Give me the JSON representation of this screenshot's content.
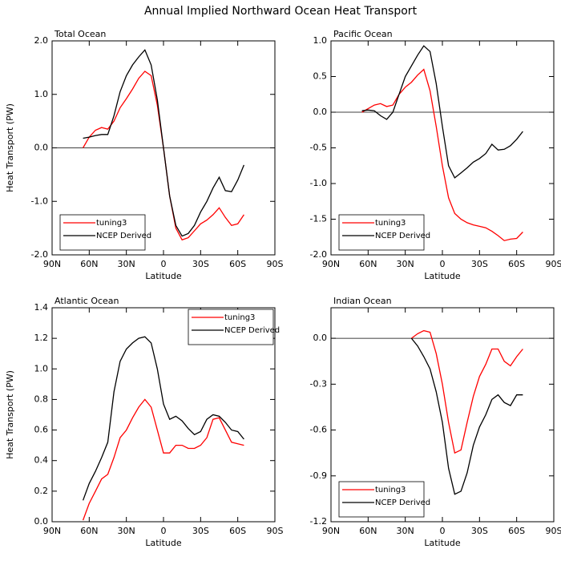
{
  "title": "Annual Implied Northward Ocean Heat Transport",
  "chart_data": [
    {
      "type": "line",
      "title": "Total Ocean",
      "x_label": "Latitude",
      "y_label": "Heat Transport (PW)",
      "x": [
        65,
        60,
        55,
        50,
        45,
        40,
        35,
        30,
        25,
        20,
        15,
        10,
        5,
        0,
        -5,
        -10,
        -15,
        -20,
        -25,
        -30,
        -35,
        -40,
        -45,
        -50,
        -55,
        -60,
        -65
      ],
      "series": [
        {
          "name": "tuning3",
          "color": "#ff0000",
          "values": [
            0.0,
            0.2,
            0.33,
            0.38,
            0.35,
            0.5,
            0.75,
            0.92,
            1.1,
            1.3,
            1.43,
            1.35,
            0.8,
            0.0,
            -0.9,
            -1.5,
            -1.72,
            -1.68,
            -1.55,
            -1.42,
            -1.35,
            -1.25,
            -1.12,
            -1.3,
            -1.45,
            -1.42,
            -1.25
          ]
        },
        {
          "name": "NCEP Derived",
          "color": "#000000",
          "values": [
            0.18,
            0.2,
            0.23,
            0.25,
            0.25,
            0.6,
            1.05,
            1.35,
            1.55,
            1.7,
            1.83,
            1.55,
            0.9,
            0.0,
            -0.9,
            -1.45,
            -1.65,
            -1.6,
            -1.45,
            -1.2,
            -1.0,
            -0.75,
            -0.55,
            -0.8,
            -0.82,
            -0.6,
            -0.32
          ]
        }
      ],
      "xlim": [
        90,
        -90
      ],
      "xticks": [
        {
          "value": 90,
          "label": "90N"
        },
        {
          "value": 60,
          "label": "60N"
        },
        {
          "value": 30,
          "label": "30N"
        },
        0,
        {
          "value": -30,
          "label": "30S"
        },
        {
          "value": -60,
          "label": "60S"
        },
        {
          "value": -90,
          "label": "90S"
        }
      ],
      "ylim": [
        -2.0,
        2.0
      ],
      "yticks": [
        {
          "value": 2.0,
          "label": "2.0"
        },
        {
          "value": 1.0,
          "label": "1.0"
        },
        {
          "value": 0.0,
          "label": "0.0"
        },
        {
          "value": -1.0,
          "label": "-1.0"
        },
        {
          "value": -2.0,
          "label": "-2.0"
        }
      ],
      "legend": "bottom-left"
    },
    {
      "type": "line",
      "title": "Pacific Ocean",
      "x_label": "Latitude",
      "x": [
        65,
        60,
        55,
        50,
        45,
        40,
        35,
        30,
        25,
        20,
        15,
        10,
        5,
        0,
        -5,
        -10,
        -15,
        -20,
        -25,
        -30,
        -35,
        -40,
        -45,
        -50,
        -55,
        -60,
        -65
      ],
      "series": [
        {
          "name": "tuning3",
          "color": "#ff0000",
          "values": [
            0.0,
            0.05,
            0.1,
            0.12,
            0.08,
            0.1,
            0.25,
            0.35,
            0.42,
            0.52,
            0.6,
            0.3,
            -0.2,
            -0.75,
            -1.2,
            -1.42,
            -1.5,
            -1.55,
            -1.58,
            -1.6,
            -1.62,
            -1.67,
            -1.73,
            -1.8,
            -1.78,
            -1.77,
            -1.68
          ]
        },
        {
          "name": "NCEP Derived",
          "color": "#000000",
          "values": [
            0.02,
            0.03,
            0.02,
            -0.05,
            -0.1,
            0.0,
            0.25,
            0.5,
            0.65,
            0.8,
            0.93,
            0.85,
            0.4,
            -0.2,
            -0.75,
            -0.92,
            -0.85,
            -0.78,
            -0.7,
            -0.65,
            -0.58,
            -0.45,
            -0.53,
            -0.52,
            -0.47,
            -0.38,
            -0.27
          ]
        }
      ],
      "xlim": [
        90,
        -90
      ],
      "xticks": [
        {
          "value": 90,
          "label": "90N"
        },
        {
          "value": 60,
          "label": "60N"
        },
        {
          "value": 30,
          "label": "30N"
        },
        0,
        {
          "value": -30,
          "label": "30S"
        },
        {
          "value": -60,
          "label": "60S"
        },
        {
          "value": -90,
          "label": "90S"
        }
      ],
      "ylim": [
        -2.0,
        1.0
      ],
      "yticks": [
        {
          "value": 1.0,
          "label": "1.0"
        },
        0.5,
        {
          "value": 0.0,
          "label": "0.0"
        },
        -0.5,
        {
          "value": -1.0,
          "label": "-1.0"
        },
        -1.5,
        {
          "value": -2.0,
          "label": "-2.0"
        }
      ],
      "legend": "bottom-left"
    },
    {
      "type": "line",
      "title": "Atlantic Ocean",
      "x_label": "Latitude",
      "y_label": "Heat Transport (PW)",
      "x": [
        65,
        60,
        55,
        50,
        45,
        40,
        35,
        30,
        25,
        20,
        15,
        10,
        5,
        0,
        -5,
        -10,
        -15,
        -20,
        -25,
        -30,
        -35,
        -40,
        -45,
        -50,
        -55,
        -60,
        -65
      ],
      "series": [
        {
          "name": "tuning3",
          "color": "#ff0000",
          "values": [
            0.01,
            0.12,
            0.2,
            0.28,
            0.31,
            0.42,
            0.55,
            0.6,
            0.68,
            0.75,
            0.8,
            0.75,
            0.6,
            0.45,
            0.45,
            0.5,
            0.5,
            0.48,
            0.48,
            0.5,
            0.55,
            0.67,
            0.68,
            0.6,
            0.52,
            0.51,
            0.5
          ]
        },
        {
          "name": "NCEP Derived",
          "color": "#000000",
          "values": [
            0.14,
            0.25,
            0.33,
            0.42,
            0.52,
            0.85,
            1.05,
            1.13,
            1.17,
            1.2,
            1.21,
            1.17,
            1.0,
            0.77,
            0.67,
            0.69,
            0.66,
            0.61,
            0.57,
            0.59,
            0.67,
            0.7,
            0.69,
            0.65,
            0.6,
            0.59,
            0.54
          ]
        }
      ],
      "xlim": [
        90,
        -90
      ],
      "xticks": [
        {
          "value": 90,
          "label": "90N"
        },
        {
          "value": 60,
          "label": "60N"
        },
        {
          "value": 30,
          "label": "30N"
        },
        0,
        {
          "value": -30,
          "label": "30S"
        },
        {
          "value": -60,
          "label": "60S"
        },
        {
          "value": -90,
          "label": "90S"
        }
      ],
      "ylim": [
        0.0,
        1.4
      ],
      "yticks": [
        {
          "value": 1.4,
          "label": "1.4"
        },
        1.2,
        {
          "value": 1.0,
          "label": "1.0"
        },
        0.8,
        0.6,
        0.4,
        0.2,
        {
          "value": 0.0,
          "label": "0.0"
        }
      ],
      "legend": "top-right"
    },
    {
      "type": "line",
      "title": "Indian Ocean",
      "x_label": "Latitude",
      "x": [
        65,
        60,
        55,
        50,
        45,
        40,
        35,
        30,
        25,
        20,
        15,
        10,
        5,
        0,
        -5,
        -10,
        -15,
        -20,
        -25,
        -30,
        -35,
        -40,
        -45,
        -50,
        -55,
        -60,
        -65
      ],
      "series": [
        {
          "name": "tuning3",
          "color": "#ff0000",
          "values": [
            null,
            null,
            null,
            null,
            null,
            null,
            null,
            null,
            0.0,
            0.03,
            0.05,
            0.04,
            -0.1,
            -0.3,
            -0.55,
            -0.75,
            -0.73,
            -0.55,
            -0.38,
            -0.25,
            -0.17,
            -0.07,
            -0.07,
            -0.15,
            -0.18,
            -0.12,
            -0.07
          ]
        },
        {
          "name": "NCEP Derived",
          "color": "#000000",
          "values": [
            null,
            null,
            null,
            null,
            null,
            null,
            null,
            null,
            0.0,
            -0.05,
            -0.12,
            -0.2,
            -0.35,
            -0.55,
            -0.85,
            -1.02,
            -1.0,
            -0.88,
            -0.7,
            -0.58,
            -0.5,
            -0.4,
            -0.37,
            -0.42,
            -0.44,
            -0.37,
            -0.37
          ]
        }
      ],
      "xlim": [
        90,
        -90
      ],
      "xticks": [
        {
          "value": 90,
          "label": "90N"
        },
        {
          "value": 60,
          "label": "60N"
        },
        {
          "value": 30,
          "label": "30N"
        },
        0,
        {
          "value": -30,
          "label": "30S"
        },
        {
          "value": -60,
          "label": "60S"
        },
        {
          "value": -90,
          "label": "90S"
        }
      ],
      "ylim": [
        -1.2,
        0.2
      ],
      "yticks": [
        {
          "value": 0.0,
          "label": "0.0"
        },
        -0.3,
        -0.6,
        -0.9,
        -1.2
      ],
      "legend": "bottom-left"
    }
  ]
}
